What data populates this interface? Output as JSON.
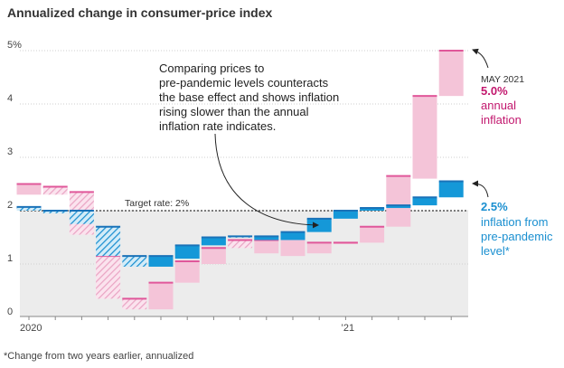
{
  "chart_data": {
    "type": "bar",
    "title": "Annualized change in consumer-price index",
    "y_ticks": [
      "0",
      "1",
      "2",
      "3",
      "4",
      "5%"
    ],
    "ylim": [
      0,
      5.1
    ],
    "x_labels": [
      "2020",
      "’21"
    ],
    "x_label_months": [
      1,
      13
    ],
    "target_rate": {
      "label": "Target rate: 2%",
      "value": 2.0
    },
    "months": [
      1,
      2,
      3,
      4,
      5,
      6,
      7,
      8,
      9,
      10,
      11,
      12,
      13,
      14,
      15,
      16,
      17
    ],
    "series": [
      {
        "name": "annual inflation",
        "color": "#e0579a",
        "fill": "#f4c4d8",
        "ranges": [
          [
            2.3,
            2.5
          ],
          [
            2.3,
            2.45
          ],
          [
            1.55,
            2.35
          ],
          [
            0.35,
            1.15
          ],
          [
            0.15,
            0.35
          ],
          [
            0.15,
            0.65
          ],
          [
            0.65,
            1.05
          ],
          [
            1.0,
            1.3
          ],
          [
            1.3,
            1.45
          ],
          [
            1.2,
            1.45
          ],
          [
            1.15,
            1.5
          ],
          [
            1.2,
            1.4
          ],
          [
            1.4,
            1.4
          ],
          [
            1.4,
            1.7
          ],
          [
            1.7,
            2.65
          ],
          [
            2.6,
            4.15
          ],
          [
            4.15,
            5.0
          ]
        ],
        "hatched": [
          false,
          true,
          true,
          true,
          true,
          false,
          false,
          false,
          true,
          false,
          false,
          false,
          false,
          false,
          false,
          false,
          false
        ]
      },
      {
        "name": "inflation from pre-pandemic level*",
        "color": "#1a72b8",
        "fill": "#1598d8",
        "ranges": [
          [
            2.0,
            2.07
          ],
          [
            1.95,
            2.0
          ],
          [
            1.75,
            2.0
          ],
          [
            1.15,
            1.7
          ],
          [
            0.95,
            1.15
          ],
          [
            0.95,
            1.15
          ],
          [
            1.1,
            1.35
          ],
          [
            1.35,
            1.5
          ],
          [
            1.5,
            1.52
          ],
          [
            1.45,
            1.52
          ],
          [
            1.45,
            1.6
          ],
          [
            1.6,
            1.85
          ],
          [
            1.85,
            2.0
          ],
          [
            2.0,
            2.05
          ],
          [
            2.05,
            2.1
          ],
          [
            2.1,
            2.25
          ],
          [
            2.25,
            2.55
          ]
        ],
        "hatched": [
          true,
          true,
          true,
          true,
          true,
          false,
          false,
          false,
          true,
          false,
          false,
          false,
          false,
          false,
          false,
          false,
          false
        ]
      }
    ],
    "annotation": {
      "text_lines": [
        "Comparing prices to",
        "pre-pandemic levels counteracts",
        "the base effect and shows inflation",
        "rising slower than the annual",
        "inflation rate indicates."
      ]
    },
    "callouts": {
      "annual": {
        "date": "MAY 2021",
        "value": "5.0%",
        "lines": [
          "annual",
          "inflation"
        ]
      },
      "pre_pandemic": {
        "value": "2.5%",
        "lines": [
          "inflation from",
          "pre-pandemic",
          "level*"
        ]
      }
    },
    "footnote": "*Change from two years earlier, annualized"
  }
}
